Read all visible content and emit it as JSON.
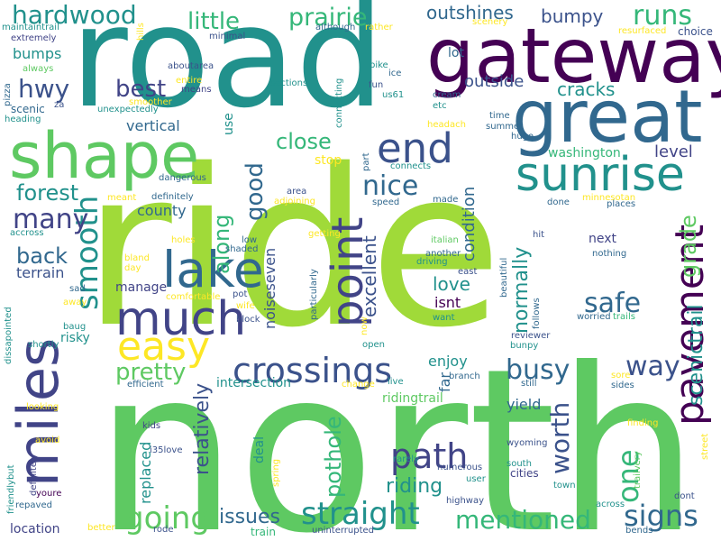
{
  "palette": {
    "dark_purple": "#440154",
    "indigo": "#3b528b",
    "slate_blue": "#414487",
    "teal_blue": "#31688e",
    "teal": "#21918c",
    "sea_green": "#35b779",
    "green": "#5ec962",
    "lime": "#a0da39",
    "yellow": "#fde725"
  },
  "words": {
    "ride": "ride",
    "north": "north",
    "road": "road",
    "gateway": "gateway",
    "great": "great",
    "shape": "shape",
    "sunrise": "sunrise",
    "miles": "miles",
    "lake": "lake",
    "much": "much",
    "easy": "easy",
    "end": "end",
    "point": "point",
    "pavement": "pavement",
    "crossings": "crossings",
    "smooth": "smooth",
    "path": "path",
    "straight": "straight",
    "mentioned": "mentioned",
    "signs": "signs",
    "going": "going",
    "busy": "busy",
    "way": "way",
    "hardwood": "hardwood",
    "little": "little",
    "prairie": "prairie",
    "runs": "runs",
    "hwy": "hwy",
    "best": "best",
    "close": "close",
    "forest": "forest",
    "many": "many",
    "back": "back",
    "pretty": "pretty",
    "nice": "nice",
    "good": "good",
    "along": "along",
    "safe": "safe",
    "one": "one",
    "worth": "worth",
    "grade": "grade",
    "scenictrail": "scenictrail",
    "normally": "normally",
    "condition": "condition",
    "excellent": "excellent",
    "pothole": "pothole",
    "relatively": "relatively",
    "issues": "issues",
    "riding": "riding",
    "outshines": "outshines",
    "bumpy": "bumpy",
    "outside": "outside",
    "cracks": "cracks",
    "bumps": "bumps",
    "vertical": "vertical",
    "terrain": "terrain",
    "county": "county",
    "manage": "manage",
    "noiseseven": "noiseseven",
    "love": "love",
    "isnt": "isnt",
    "enjoy": "enjoy",
    "far": "far",
    "next": "next",
    "washington": "washington",
    "level": "level",
    "location": "location",
    "intersection": "intersection",
    "risky": "risky",
    "yield": "yield",
    "ridingtrail": "ridingtrail",
    "replaced": "replaced",
    "deal": "deal",
    "lot": "lot",
    "stop": "stop",
    "use": "use",
    "maintaintrail": "maintaintrail",
    "extremely": "extremely",
    "always": "always",
    "pizza": "pizza",
    "heading": "heading",
    "scenic": "scenic",
    "za": "za",
    "aboutarea": "aboutarea",
    "means": "means",
    "entire": "entire",
    "smoother": "smoother",
    "unexpectedly": "unexpectedly",
    "hills": "hills",
    "minimal": "minimal",
    "sections": "sections",
    "although": "although",
    "rather": "rather",
    "scenery": "scenery",
    "resurfaced": "resurfaced",
    "choice": "choice",
    "bike": "bike",
    "ice": "ice",
    "fun": "fun",
    "us61": "us61",
    "cream": "cream",
    "etc": "etc",
    "time": "time",
    "summer": "summer",
    "hugo": "hugo",
    "headach": "headach",
    "connecting": "connecting",
    "part": "part",
    "connects": "connects",
    "dangerous": "dangerous",
    "area": "area",
    "adjoining": "adjoining",
    "speed": "speed",
    "made": "made",
    "done": "done",
    "minnesotan": "minnesotan",
    "places": "places",
    "meant": "meant",
    "definitely_top": "definitely",
    "accross": "accross",
    "bland": "bland",
    "day": "day",
    "holes": "holes",
    "shaded": "shaded",
    "low": "low",
    "getting": "getting",
    "particularly": "particularly",
    "italian": "italian",
    "hit": "hit",
    "another": "another",
    "driving": "driving",
    "east": "east",
    "nothing": "nothing",
    "beautiful": "beautiful",
    "follows": "follows",
    "worried": "worried",
    "trails": "trails",
    "sad": "sad",
    "away": "away",
    "comfortable": "comfortable",
    "pot": "pot",
    "wife": "wife",
    "block": "block",
    "now": "now",
    "open": "open",
    "want": "want",
    "reviewer": "reviewer",
    "bunpy": "bunpy",
    "baug": "baug",
    "dissapointed": "dissapointed",
    "shortly": "shortly",
    "efficient": "efficient",
    "change": "change",
    "live": "live",
    "branch": "branch",
    "still": "still",
    "sides": "sides",
    "sore": "sore",
    "looking": "looking",
    "kids": "kids",
    "finding": "finding",
    "friendlybut": "friendlybut",
    "avoid": "avoid",
    "definitely_bottom": "definitely",
    "i35love": "i35love",
    "spring": "spring",
    "rarely": "rarely",
    "wyoming": "wyoming",
    "street": "street",
    "numerous": "numerous",
    "user": "user",
    "south": "south",
    "cities": "cities",
    "trailvery": "trailvery",
    "town": "town",
    "highway": "highway",
    "youre": "youre",
    "repaved": "repaved",
    "across": "across",
    "dont": "dont",
    "better": "better",
    "rode": "rode",
    "train": "train",
    "uninterrupted": "uninterrupted",
    "bends": "bends"
  }
}
